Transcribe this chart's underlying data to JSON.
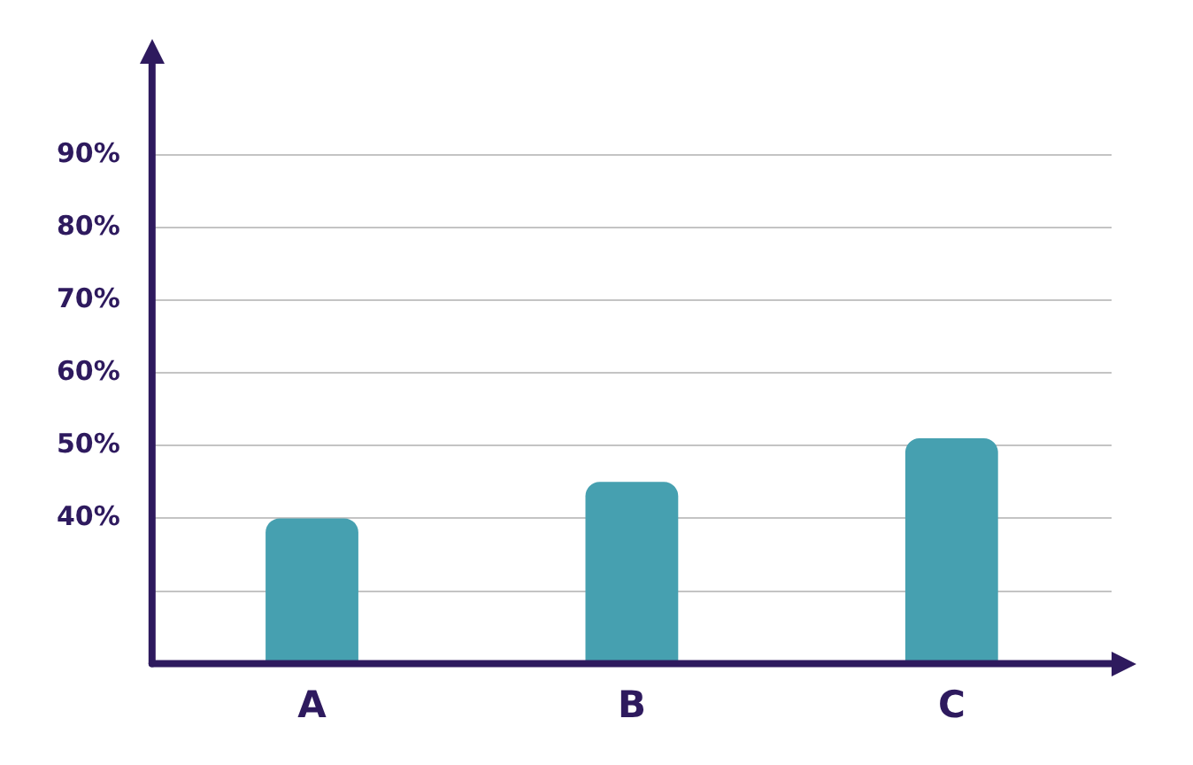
{
  "chart_data": {
    "type": "bar",
    "categories": [
      "A",
      "B",
      "C"
    ],
    "values": [
      40,
      45,
      51
    ],
    "color": "#46a0b0",
    "ylim": [
      20,
      104
    ],
    "yticks": [
      {
        "value": 30,
        "label": null
      },
      {
        "value": 40,
        "label": "40%"
      },
      {
        "value": 50,
        "label": "50%"
      },
      {
        "value": 60,
        "label": "60%"
      },
      {
        "value": 70,
        "label": "70%"
      },
      {
        "value": 80,
        "label": "80%"
      },
      {
        "value": 90,
        "label": "90%"
      }
    ],
    "grid": "y"
  }
}
